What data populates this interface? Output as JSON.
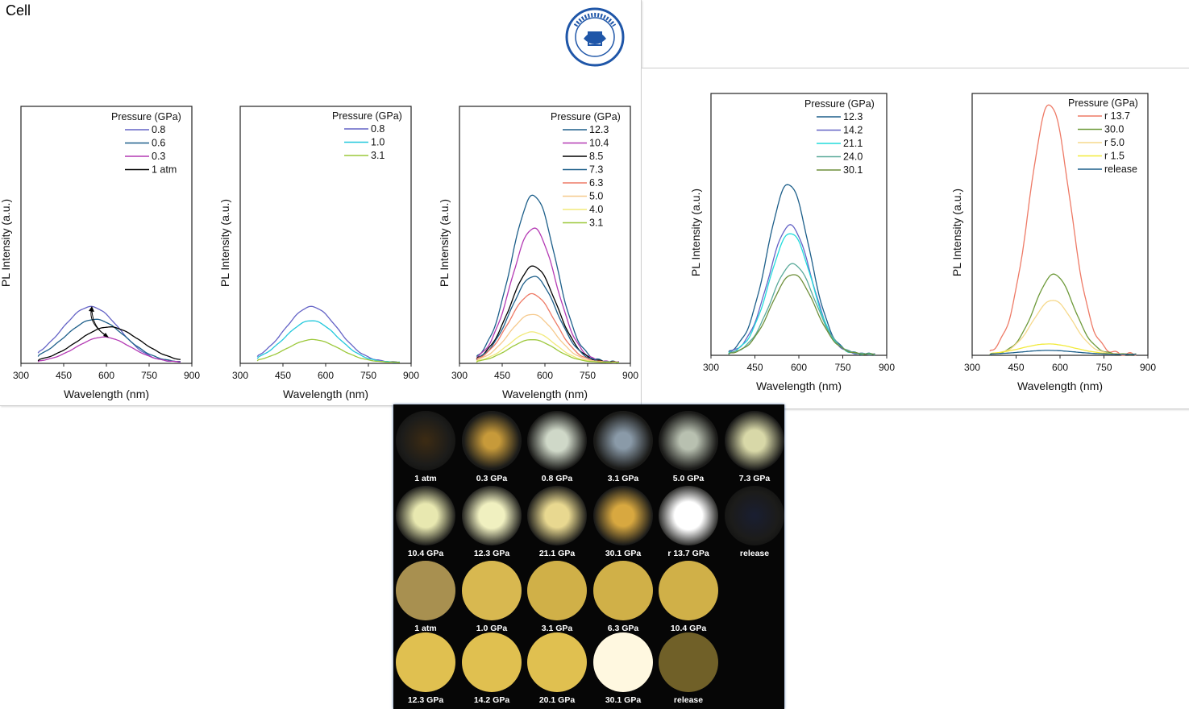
{
  "slide_title": "Cell",
  "logo_text": "JILIN UNIVERSITY CHINA",
  "chart_data": [
    {
      "type": "line",
      "xlabel": "Wavelength (nm)",
      "ylabel": "PL Intensity (a.u.)",
      "xlim": [
        300,
        900
      ],
      "xticks": [
        300,
        450,
        600,
        750,
        900
      ],
      "legend_title": "Pressure (GPa)",
      "legend_position": "top-right",
      "series": [
        {
          "name": "0.8",
          "color": "#6463c6",
          "peak_x": 545,
          "peak_y": 0.22,
          "width": 100
        },
        {
          "name": "0.6",
          "color": "#1d5f8a",
          "peak_x": 560,
          "peak_y": 0.17,
          "width": 105
        },
        {
          "name": "0.3",
          "color": "#b43ab4",
          "peak_x": 590,
          "peak_y": 0.1,
          "width": 95
        },
        {
          "name": "1 atm",
          "color": "#000000",
          "peak_x": 610,
          "peak_y": 0.14,
          "width": 110
        }
      ]
    },
    {
      "type": "line",
      "xlabel": "Wavelength (nm)",
      "ylabel": "PL Intensity (a.u.)",
      "xlim": [
        300,
        900
      ],
      "xticks": [
        300,
        450,
        600,
        750,
        900
      ],
      "legend_title": "Pressure (GPa)",
      "legend_position": "top-right",
      "series": [
        {
          "name": "0.8",
          "color": "#6463c6",
          "peak_x": 550,
          "peak_y": 0.22,
          "width": 92
        },
        {
          "name": "1.0",
          "color": "#22c8dc",
          "peak_x": 550,
          "peak_y": 0.165,
          "width": 92
        },
        {
          "name": "3.1",
          "color": "#9cc83a",
          "peak_x": 555,
          "peak_y": 0.09,
          "width": 92
        }
      ]
    },
    {
      "type": "line",
      "xlabel": "Wavelength (nm)",
      "ylabel": "PL Intensity (a.u.)",
      "xlim": [
        300,
        900
      ],
      "xticks": [
        300,
        450,
        600,
        750,
        900
      ],
      "legend_title": "Pressure (GPa)",
      "legend_position": "top-right",
      "series": [
        {
          "name": "12.3",
          "color": "#1d5f8a",
          "peak_x": 560,
          "peak_y": 0.66,
          "width": 78
        },
        {
          "name": "10.4",
          "color": "#b43ab4",
          "peak_x": 560,
          "peak_y": 0.53,
          "width": 78
        },
        {
          "name": "8.5",
          "color": "#000000",
          "peak_x": 560,
          "peak_y": 0.38,
          "width": 80
        },
        {
          "name": "7.3",
          "color": "#1d5f8a",
          "peak_x": 560,
          "peak_y": 0.34,
          "width": 80
        },
        {
          "name": "6.3",
          "color": "#ee7a66",
          "peak_x": 555,
          "peak_y": 0.27,
          "width": 80
        },
        {
          "name": "5.0",
          "color": "#f6c98c",
          "peak_x": 555,
          "peak_y": 0.19,
          "width": 80
        },
        {
          "name": "4.0",
          "color": "#f2ea7a",
          "peak_x": 555,
          "peak_y": 0.12,
          "width": 80
        },
        {
          "name": "3.1",
          "color": "#9cc83a",
          "peak_x": 555,
          "peak_y": 0.09,
          "width": 80
        }
      ]
    },
    {
      "type": "line",
      "xlabel": "Wavelength (nm)",
      "ylabel": "PL Intensity (a.u.)",
      "xlim": [
        300,
        900
      ],
      "xticks": [
        300,
        450,
        600,
        750,
        900
      ],
      "legend_title": "Pressure (GPa)",
      "legend_position": "top-right",
      "series": [
        {
          "name": "12.3",
          "color": "#1d5f8a",
          "peak_x": 565,
          "peak_y": 0.66,
          "width": 72
        },
        {
          "name": "14.2",
          "color": "#6463c6",
          "peak_x": 570,
          "peak_y": 0.5,
          "width": 72
        },
        {
          "name": "21.1",
          "color": "#22dcdc",
          "peak_x": 572,
          "peak_y": 0.47,
          "width": 72
        },
        {
          "name": "24.0",
          "color": "#5aaa9a",
          "peak_x": 580,
          "peak_y": 0.35,
          "width": 74
        },
        {
          "name": "30.1",
          "color": "#6e8f3a",
          "peak_x": 580,
          "peak_y": 0.31,
          "width": 74
        }
      ]
    },
    {
      "type": "line",
      "xlabel": "Wavelength (nm)",
      "ylabel": "PL Intensity (a.u.)",
      "xlim": [
        300,
        900
      ],
      "xticks": [
        300,
        450,
        600,
        750,
        900
      ],
      "legend_title": "Pressure (GPa)",
      "legend_position": "top-right",
      "series": [
        {
          "name": "r 13.7",
          "color": "#ee7a66",
          "peak_x": 565,
          "peak_y": 0.97,
          "width": 70
        },
        {
          "name": "30.0",
          "color": "#6e9a3a",
          "peak_x": 580,
          "peak_y": 0.31,
          "width": 66
        },
        {
          "name": "r 5.0",
          "color": "#f6d98c",
          "peak_x": 575,
          "peak_y": 0.21,
          "width": 68
        },
        {
          "name": "r 1.5",
          "color": "#f2ea3a",
          "peak_x": 560,
          "peak_y": 0.04,
          "width": 90
        },
        {
          "name": "release",
          "color": "#1d5f8a",
          "peak_x": 560,
          "peak_y": 0.015,
          "width": 90
        }
      ]
    }
  ],
  "photos": {
    "row1": [
      {
        "label": "1 atm",
        "color": "#3a2a14",
        "glow": 0.15
      },
      {
        "label": "0.3 GPa",
        "color": "#c79a3a",
        "glow": 0.55
      },
      {
        "label": "0.8 GPa",
        "color": "#cfd8c8",
        "glow": 0.7
      },
      {
        "label": "3.1 GPa",
        "color": "#8a9aa8",
        "glow": 0.55
      },
      {
        "label": "5.0 GPa",
        "color": "#b8c0b0",
        "glow": 0.6
      },
      {
        "label": "7.3 GPa",
        "color": "#d8d8a8",
        "glow": 0.7
      }
    ],
    "row2": [
      {
        "label": "10.4 GPa",
        "color": "#e8e8b0",
        "glow": 0.8
      },
      {
        "label": "12.3 GPa",
        "color": "#f0f0c0",
        "glow": 0.85
      },
      {
        "label": "21.1 GPa",
        "color": "#e8d890",
        "glow": 0.8
      },
      {
        "label": "30.1 GPa",
        "color": "#d8a840",
        "glow": 0.7
      },
      {
        "label": "r 13.7 GPa",
        "color": "#ffffff",
        "glow": 0.95
      },
      {
        "label": "release",
        "color": "#1a1e30",
        "glow": 0.1
      }
    ],
    "row3": [
      {
        "label": "1 atm",
        "color": "#a89050"
      },
      {
        "label": "1.0 GPa",
        "color": "#d8b850"
      },
      {
        "label": "3.1 GPa",
        "color": "#d0b048"
      },
      {
        "label": "6.3 GPa",
        "color": "#d0b048"
      },
      {
        "label": "10.4 GPa",
        "color": "#d0b048"
      }
    ],
    "row4": [
      {
        "label": "12.3 GPa",
        "color": "#e0c050"
      },
      {
        "label": "14.2 GPa",
        "color": "#e0c050"
      },
      {
        "label": "20.1 GPa",
        "color": "#e0c050"
      },
      {
        "label": "30.1 GPa",
        "color": "#fff8e0"
      },
      {
        "label": "release",
        "color": "#706028"
      }
    ]
  }
}
